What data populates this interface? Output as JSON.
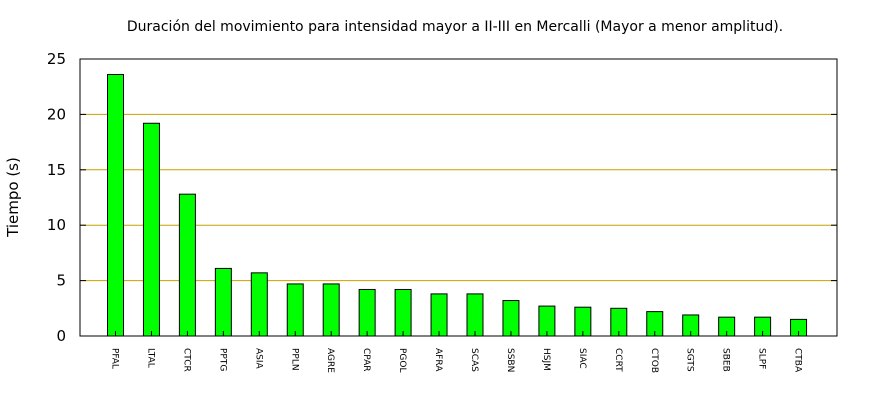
{
  "chart_data": {
    "type": "bar",
    "title": "Duración del movimiento para intensidad mayor a II-III en Mercalli (Mayor a menor amplitud).",
    "xlabel": "",
    "ylabel": "Tiempo (s)",
    "ylim": [
      0,
      25
    ],
    "yticks": [
      0,
      5,
      10,
      15,
      20,
      25
    ],
    "grid": true,
    "categories": [
      "PFAL",
      "LTAL",
      "CTCR",
      "PPTG",
      "ASIA",
      "PPLN",
      "AGRE",
      "CPAR",
      "PGOL",
      "AFRA",
      "SCAS",
      "SSBN",
      "HSJM",
      "SIAC",
      "CCRT",
      "CTOB",
      "SGTS",
      "SBEB",
      "SLPF",
      "CTBA"
    ],
    "values": [
      23.6,
      19.2,
      12.8,
      6.1,
      5.7,
      4.7,
      4.7,
      4.2,
      4.2,
      3.8,
      3.8,
      3.2,
      2.7,
      2.6,
      2.5,
      2.2,
      1.9,
      1.7,
      1.7,
      1.5
    ],
    "colors": {
      "bar": "#00ff00",
      "bar_stroke": "#000000",
      "grid": "#c8a000",
      "frame": "#000000"
    }
  }
}
